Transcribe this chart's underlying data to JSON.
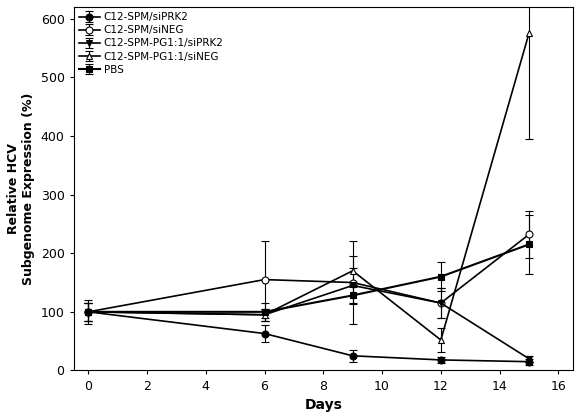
{
  "days": [
    0,
    6,
    9,
    12,
    15
  ],
  "series": [
    {
      "label": "C12-SPM/siPRK2",
      "values": [
        100,
        63,
        25,
        18,
        15
      ],
      "yerr": [
        15,
        15,
        10,
        5,
        5
      ],
      "marker": "o",
      "mfc": "#000000",
      "mec": "#000000",
      "color": "#000000",
      "lw": 1.2,
      "ms": 5
    },
    {
      "label": "C12-SPM/siNEG",
      "values": [
        100,
        155,
        150,
        115,
        232
      ],
      "yerr": [
        20,
        65,
        70,
        25,
        40
      ],
      "marker": "o",
      "mfc": "#ffffff",
      "mec": "#000000",
      "color": "#000000",
      "lw": 1.2,
      "ms": 5
    },
    {
      "label": "C12-SPM-PG1:1/siPRK2",
      "values": [
        100,
        95,
        145,
        115,
        20
      ],
      "yerr": [
        15,
        10,
        30,
        25,
        5
      ],
      "marker": "v",
      "mfc": "#000000",
      "mec": "#000000",
      "color": "#000000",
      "lw": 1.2,
      "ms": 5
    },
    {
      "label": "C12-SPM-PG1:1/siNEG",
      "values": [
        100,
        95,
        170,
        52,
        575
      ],
      "yerr": [
        15,
        10,
        25,
        20,
        180
      ],
      "marker": "^",
      "mfc": "#ffffff",
      "mec": "#000000",
      "color": "#000000",
      "lw": 1.2,
      "ms": 5
    },
    {
      "label": "PBS",
      "values": [
        100,
        100,
        128,
        160,
        215
      ],
      "yerr": [
        15,
        15,
        15,
        25,
        50
      ],
      "marker": "s",
      "mfc": "#000000",
      "mec": "#000000",
      "color": "#000000",
      "lw": 1.5,
      "ms": 5
    }
  ],
  "xlabel": "Days",
  "ylabel": "Relative HCV\nSubgenome Expression (%)",
  "ylim": [
    0,
    620
  ],
  "xlim": [
    -0.5,
    16.5
  ],
  "yticks": [
    0,
    100,
    200,
    300,
    400,
    500,
    600
  ],
  "xticks": [
    0,
    2,
    4,
    6,
    8,
    10,
    12,
    14,
    16
  ],
  "background_color": "#ffffff",
  "figsize": [
    5.8,
    4.19
  ],
  "dpi": 100
}
